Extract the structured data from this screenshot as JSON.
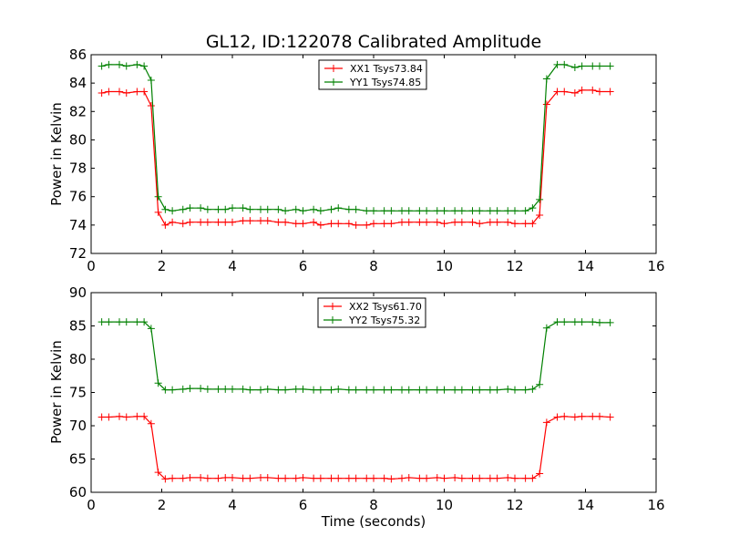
{
  "page": {
    "title": "GL12, ID:122078 Calibrated Amplitude"
  },
  "chart_data": [
    {
      "type": "line",
      "title": "GL12, ID:122078 Calibrated Amplitude",
      "xlabel": "",
      "ylabel": "Power in Kelvin",
      "xlim": [
        0,
        16
      ],
      "ylim": [
        72,
        86
      ],
      "xticks": [
        0,
        2,
        4,
        6,
        8,
        10,
        12,
        14,
        16
      ],
      "yticks": [
        72,
        74,
        76,
        78,
        80,
        82,
        84,
        86
      ],
      "grid": false,
      "legend_position": "top-center",
      "x": [
        0.3,
        0.5,
        0.8,
        1.0,
        1.3,
        1.5,
        1.7,
        1.9,
        2.1,
        2.3,
        2.6,
        2.8,
        3.1,
        3.3,
        3.6,
        3.8,
        4.0,
        4.3,
        4.5,
        4.8,
        5.0,
        5.3,
        5.5,
        5.8,
        6.0,
        6.3,
        6.5,
        6.8,
        7.0,
        7.3,
        7.5,
        7.8,
        8.0,
        8.3,
        8.5,
        8.8,
        9.0,
        9.3,
        9.5,
        9.8,
        10.0,
        10.3,
        10.5,
        10.8,
        11.0,
        11.3,
        11.5,
        11.8,
        12.0,
        12.3,
        12.5,
        12.7,
        12.9,
        13.2,
        13.4,
        13.7,
        13.9,
        14.2,
        14.4,
        14.7
      ],
      "series": [
        {
          "name": "XX1 Tsys73.84",
          "color": "#ff0000",
          "values": [
            83.3,
            83.4,
            83.4,
            83.3,
            83.4,
            83.4,
            82.4,
            74.9,
            74.0,
            74.2,
            74.1,
            74.2,
            74.2,
            74.2,
            74.2,
            74.2,
            74.2,
            74.3,
            74.3,
            74.3,
            74.3,
            74.2,
            74.2,
            74.1,
            74.1,
            74.2,
            74.0,
            74.1,
            74.1,
            74.1,
            74.0,
            74.0,
            74.1,
            74.1,
            74.1,
            74.2,
            74.2,
            74.2,
            74.2,
            74.2,
            74.1,
            74.2,
            74.2,
            74.2,
            74.1,
            74.2,
            74.2,
            74.2,
            74.1,
            74.1,
            74.1,
            74.7,
            82.5,
            83.4,
            83.4,
            83.3,
            83.5,
            83.5,
            83.4,
            83.4
          ]
        },
        {
          "name": "YY1 Tsys74.85",
          "color": "#008000",
          "values": [
            85.2,
            85.3,
            85.3,
            85.2,
            85.3,
            85.2,
            84.2,
            76.0,
            75.1,
            75.0,
            75.1,
            75.2,
            75.2,
            75.1,
            75.1,
            75.1,
            75.2,
            75.2,
            75.1,
            75.1,
            75.1,
            75.1,
            75.0,
            75.1,
            75.0,
            75.1,
            75.0,
            75.1,
            75.2,
            75.1,
            75.1,
            75.0,
            75.0,
            75.0,
            75.0,
            75.0,
            75.0,
            75.0,
            75.0,
            75.0,
            75.0,
            75.0,
            75.0,
            75.0,
            75.0,
            75.0,
            75.0,
            75.0,
            75.0,
            75.0,
            75.2,
            75.8,
            84.3,
            85.3,
            85.3,
            85.1,
            85.2,
            85.2,
            85.2,
            85.2
          ]
        }
      ]
    },
    {
      "type": "line",
      "title": "",
      "xlabel": "Time (seconds)",
      "ylabel": "Power in Kelvin",
      "xlim": [
        0,
        16
      ],
      "ylim": [
        60,
        90
      ],
      "xticks": [
        0,
        2,
        4,
        6,
        8,
        10,
        12,
        14,
        16
      ],
      "yticks": [
        60,
        65,
        70,
        75,
        80,
        85,
        90
      ],
      "grid": false,
      "legend_position": "top-center",
      "x": [
        0.3,
        0.5,
        0.8,
        1.0,
        1.3,
        1.5,
        1.7,
        1.9,
        2.1,
        2.3,
        2.6,
        2.8,
        3.1,
        3.3,
        3.6,
        3.8,
        4.0,
        4.3,
        4.5,
        4.8,
        5.0,
        5.3,
        5.5,
        5.8,
        6.0,
        6.3,
        6.5,
        6.8,
        7.0,
        7.3,
        7.5,
        7.8,
        8.0,
        8.3,
        8.5,
        8.8,
        9.0,
        9.3,
        9.5,
        9.8,
        10.0,
        10.3,
        10.5,
        10.8,
        11.0,
        11.3,
        11.5,
        11.8,
        12.0,
        12.3,
        12.5,
        12.7,
        12.9,
        13.2,
        13.4,
        13.7,
        13.9,
        14.2,
        14.4,
        14.7
      ],
      "series": [
        {
          "name": "XX2 Tsys61.70",
          "color": "#ff0000",
          "values": [
            71.3,
            71.3,
            71.4,
            71.3,
            71.4,
            71.4,
            70.3,
            63.0,
            62.0,
            62.1,
            62.1,
            62.2,
            62.2,
            62.1,
            62.1,
            62.2,
            62.2,
            62.1,
            62.1,
            62.2,
            62.2,
            62.1,
            62.1,
            62.1,
            62.2,
            62.1,
            62.1,
            62.1,
            62.1,
            62.1,
            62.1,
            62.1,
            62.1,
            62.1,
            62.0,
            62.1,
            62.2,
            62.1,
            62.1,
            62.2,
            62.1,
            62.2,
            62.1,
            62.1,
            62.1,
            62.1,
            62.1,
            62.2,
            62.1,
            62.1,
            62.1,
            62.8,
            70.5,
            71.3,
            71.4,
            71.3,
            71.4,
            71.4,
            71.4,
            71.3
          ]
        },
        {
          "name": "YY2 Tsys75.32",
          "color": "#008000",
          "values": [
            85.6,
            85.6,
            85.6,
            85.6,
            85.6,
            85.6,
            84.6,
            76.4,
            75.4,
            75.4,
            75.5,
            75.6,
            75.6,
            75.5,
            75.5,
            75.5,
            75.5,
            75.5,
            75.4,
            75.4,
            75.5,
            75.4,
            75.4,
            75.5,
            75.5,
            75.4,
            75.4,
            75.4,
            75.5,
            75.4,
            75.4,
            75.4,
            75.4,
            75.4,
            75.4,
            75.4,
            75.4,
            75.4,
            75.4,
            75.4,
            75.4,
            75.4,
            75.4,
            75.4,
            75.4,
            75.4,
            75.4,
            75.5,
            75.4,
            75.4,
            75.5,
            76.2,
            84.7,
            85.6,
            85.6,
            85.6,
            85.6,
            85.6,
            85.5,
            85.5
          ]
        }
      ]
    }
  ]
}
